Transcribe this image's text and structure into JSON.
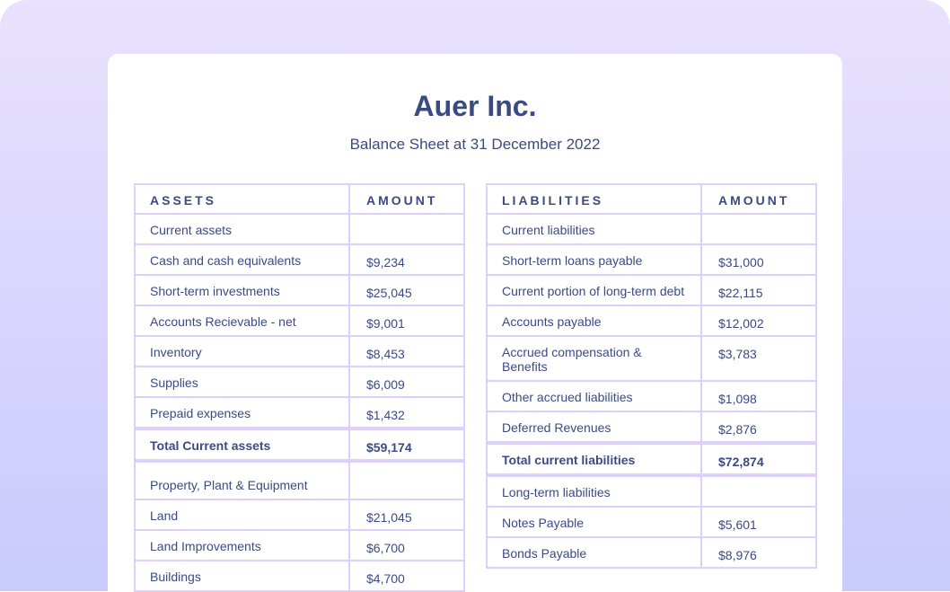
{
  "company": "Auer Inc.",
  "subtitle": "Balance Sheet at 31 December 2022",
  "assets": {
    "headers": [
      "ASSETS",
      "AMOUNT"
    ],
    "rows": [
      {
        "label": "Current assets",
        "amount": ""
      },
      {
        "label": "Cash and cash equivalents",
        "amount": "$9,234"
      },
      {
        "label": "Short-term investments",
        "amount": "$25,045"
      },
      {
        "label": "Accounts Recievable - net",
        "amount": "$9,001"
      },
      {
        "label": "Inventory",
        "amount": "$8,453"
      },
      {
        "label": "Supplies",
        "amount": "$6,009"
      },
      {
        "label": "Prepaid expenses",
        "amount": "$1,432"
      },
      {
        "label": "Total Current assets",
        "amount": "$59,174",
        "total": true
      },
      {
        "label": "Property, Plant & Equipment",
        "amount": "",
        "spaced": true
      },
      {
        "label": "Land",
        "amount": "$21,045"
      },
      {
        "label": "Land Improvements",
        "amount": "$6,700"
      },
      {
        "label": "Buildings",
        "amount": "$4,700"
      }
    ]
  },
  "liabilities": {
    "headers": [
      "LIABILITIES",
      "AMOUNT"
    ],
    "rows": [
      {
        "label": "Current liabilities",
        "amount": ""
      },
      {
        "label": "Short-term loans payable",
        "amount": "$31,000"
      },
      {
        "label": "Current portion of long-term debt",
        "amount": "$22,115"
      },
      {
        "label": "Accounts payable",
        "amount": "$12,002"
      },
      {
        "label": "Accrued compensation & Benefits",
        "amount": "$3,783"
      },
      {
        "label": "Other accrued liabilities",
        "amount": "$1,098"
      },
      {
        "label": "Deferred Revenues",
        "amount": "$2,876"
      },
      {
        "label": "Total current liabilities",
        "amount": "$72,874",
        "total": true
      },
      {
        "label": "Long-term liabilities",
        "amount": ""
      },
      {
        "label": "Notes Payable",
        "amount": "$5,601"
      },
      {
        "label": "Bonds Payable",
        "amount": "$8,976"
      }
    ]
  }
}
